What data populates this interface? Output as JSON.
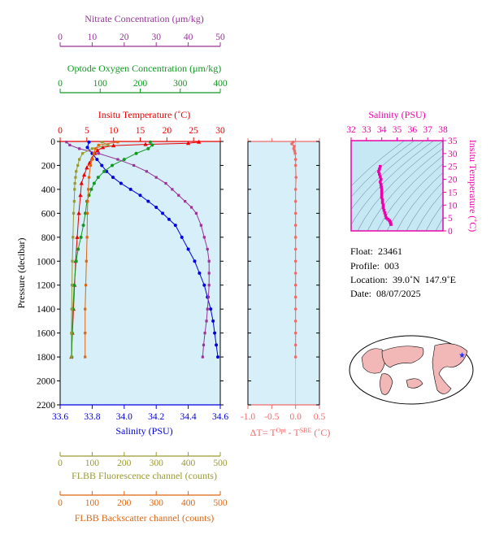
{
  "chart_data": {
    "type": "scatter",
    "main_profile": {
      "ylabel": "Pressure (decibar)",
      "ylim": [
        0,
        2200
      ],
      "yticks": [
        0,
        200,
        400,
        600,
        800,
        1000,
        1200,
        1400,
        1600,
        1800,
        2000,
        2200
      ],
      "axes": {
        "nitrate": {
          "label": "Nitrate Concentration (μm/kg)",
          "ticks": [
            0,
            10,
            20,
            30,
            40,
            50
          ],
          "lim": [
            0,
            50
          ],
          "color": "#993399"
        },
        "oxygen": {
          "label": "Optode Oxygen Concentration (μm/kg)",
          "ticks": [
            0,
            100,
            200,
            300,
            400
          ],
          "lim": [
            0,
            400
          ],
          "color": "#119922"
        },
        "temperature": {
          "label": "Insitu Temperature (˚C)",
          "ticks": [
            0,
            5,
            10,
            15,
            20,
            25,
            30
          ],
          "lim": [
            0,
            30
          ],
          "color": "#ee0000"
        },
        "salinity": {
          "label": "Salinity (PSU)",
          "ticks": [
            "33.6",
            "33.8",
            "34.0",
            "34.2",
            "34.4",
            "34.6"
          ],
          "lim": [
            33.6,
            34.6
          ],
          "color": "#0000dd"
        },
        "fluorescence": {
          "label": "FLBB Fluorescence channel (counts)",
          "ticks": [
            0,
            100,
            200,
            300,
            400,
            500
          ],
          "lim": [
            0,
            500
          ],
          "color": "#999933"
        },
        "backscatter": {
          "label": "FLBB Backscatter channel (counts)",
          "ticks": [
            0,
            100,
            200,
            300,
            400,
            500
          ],
          "lim": [
            0,
            500
          ],
          "color": "#dd6611"
        }
      },
      "series": [
        {
          "axis": "temperature",
          "points": [
            [
              26,
              5
            ],
            [
              24,
              15
            ],
            [
              16,
              25
            ],
            [
              10,
              35
            ],
            [
              8,
              50
            ],
            [
              7,
              75
            ],
            [
              6.5,
              100
            ],
            [
              6,
              140
            ],
            [
              5.5,
              180
            ],
            [
              5,
              220
            ],
            [
              4.5,
              280
            ],
            [
              4,
              350
            ],
            [
              3.8,
              450
            ],
            [
              3.5,
              600
            ],
            [
              3.2,
              800
            ],
            [
              2.9,
              1000
            ],
            [
              2.7,
              1200
            ],
            [
              2.5,
              1400
            ],
            [
              2.3,
              1600
            ],
            [
              2.1,
              1800
            ]
          ]
        },
        {
          "axis": "salinity",
          "points": [
            [
              33.78,
              5
            ],
            [
              33.77,
              50
            ],
            [
              33.8,
              100
            ],
            [
              33.83,
              150
            ],
            [
              33.86,
              200
            ],
            [
              33.89,
              250
            ],
            [
              33.93,
              300
            ],
            [
              33.98,
              350
            ],
            [
              34.04,
              400
            ],
            [
              34.1,
              450
            ],
            [
              34.15,
              500
            ],
            [
              34.2,
              550
            ],
            [
              34.24,
              600
            ],
            [
              34.28,
              650
            ],
            [
              34.32,
              700
            ],
            [
              34.36,
              800
            ],
            [
              34.4,
              900
            ],
            [
              34.44,
              1000
            ],
            [
              34.47,
              1100
            ],
            [
              34.5,
              1200
            ],
            [
              34.52,
              1300
            ],
            [
              34.54,
              1400
            ],
            [
              34.555,
              1500
            ],
            [
              34.565,
              1600
            ],
            [
              34.575,
              1700
            ],
            [
              34.585,
              1800
            ]
          ]
        },
        {
          "axis": "oxygen",
          "points": [
            [
              225,
              5
            ],
            [
              230,
              30
            ],
            [
              220,
              60
            ],
            [
              190,
              100
            ],
            [
              160,
              150
            ],
            [
              130,
              200
            ],
            [
              110,
              250
            ],
            [
              95,
              300
            ],
            [
              85,
              350
            ],
            [
              78,
              400
            ],
            [
              72,
              450
            ],
            [
              67,
              500
            ],
            [
              63,
              600
            ],
            [
              58,
              700
            ],
            [
              52,
              800
            ],
            [
              45,
              900
            ],
            [
              40,
              1000
            ],
            [
              35,
              1200
            ],
            [
              32,
              1400
            ],
            [
              30,
              1600
            ],
            [
              29,
              1800
            ]
          ]
        },
        {
          "axis": "nitrate",
          "points": [
            [
              2,
              5
            ],
            [
              3,
              30
            ],
            [
              6,
              60
            ],
            [
              12,
              100
            ],
            [
              18,
              150
            ],
            [
              23,
              200
            ],
            [
              27,
              250
            ],
            [
              30,
              300
            ],
            [
              33,
              350
            ],
            [
              35,
              400
            ],
            [
              37,
              450
            ],
            [
              39,
              500
            ],
            [
              41,
              550
            ],
            [
              42.5,
              600
            ],
            [
              44,
              700
            ],
            [
              45,
              800
            ],
            [
              46,
              900
            ],
            [
              46.5,
              1000
            ],
            [
              46.5,
              1100
            ],
            [
              46.5,
              1200
            ],
            [
              46.3,
              1300
            ],
            [
              46,
              1400
            ],
            [
              45.7,
              1500
            ],
            [
              45.2,
              1600
            ],
            [
              44.8,
              1700
            ],
            [
              44.5,
              1800
            ]
          ]
        },
        {
          "axis": "fluorescence",
          "points": [
            [
              130,
              5
            ],
            [
              150,
              30
            ],
            [
              100,
              60
            ],
            [
              70,
              100
            ],
            [
              60,
              150
            ],
            [
              55,
              200
            ],
            [
              50,
              250
            ],
            [
              48,
              300
            ],
            [
              46,
              350
            ],
            [
              45,
              400
            ],
            [
              44,
              500
            ],
            [
              42,
              600
            ],
            [
              40,
              800
            ],
            [
              38,
              1000
            ],
            [
              37,
              1200
            ],
            [
              36,
              1400
            ],
            [
              35,
              1600
            ],
            [
              35,
              1800
            ]
          ]
        },
        {
          "axis": "backscatter",
          "points": [
            [
              180,
              5
            ],
            [
              120,
              30
            ],
            [
              110,
              60
            ],
            [
              105,
              100
            ],
            [
              100,
              150
            ],
            [
              95,
              200
            ],
            [
              90,
              300
            ],
            [
              88,
              400
            ],
            [
              86,
              500
            ],
            [
              85,
              600
            ],
            [
              84,
              800
            ],
            [
              82,
              1000
            ],
            [
              80,
              1200
            ],
            [
              78,
              1400
            ],
            [
              78,
              1600
            ],
            [
              78,
              1800
            ]
          ]
        }
      ]
    },
    "delta_t": {
      "xlabel": "ΔT= Tᴼᵖᵗ - Tˢᴮᴱ (˚C)",
      "xlabel_main": "ΔT= T",
      "xlabel_sup1": "Opt",
      "xlabel_mid": " - T",
      "xlabel_sup2": "SBE",
      "xlabel_end": " (˚C)",
      "ticks": [
        "-1.0",
        "-0.5",
        "0.0",
        "0.5"
      ],
      "xlim": [
        -1.0,
        0.5
      ],
      "points": [
        [
          -0.05,
          5
        ],
        [
          -0.08,
          20
        ],
        [
          -0.03,
          40
        ],
        [
          -0.04,
          60
        ],
        [
          -0.02,
          80
        ],
        [
          -0.01,
          100
        ],
        [
          0.0,
          150
        ],
        [
          0.0,
          200
        ],
        [
          0.01,
          300
        ],
        [
          0.0,
          400
        ],
        [
          0.0,
          500
        ],
        [
          0.0,
          600
        ],
        [
          0.0,
          700
        ],
        [
          0.0,
          800
        ],
        [
          0.0,
          900
        ],
        [
          0.0,
          1000
        ],
        [
          0.0,
          1100
        ],
        [
          0.0,
          1200
        ],
        [
          0.0,
          1300
        ],
        [
          0.0,
          1400
        ],
        [
          0.0,
          1500
        ],
        [
          0.0,
          1600
        ],
        [
          0.0,
          1700
        ],
        [
          0.0,
          1800
        ]
      ]
    },
    "ts_diagram": {
      "xlabel": "Salinity (PSU)",
      "ylabel": "Insitu Temperature (˚C)",
      "xticks": [
        32,
        33,
        34,
        35,
        36,
        37,
        38
      ],
      "yticks": [
        0,
        5,
        10,
        15,
        20,
        25,
        30,
        35
      ],
      "xlim": [
        32,
        38
      ],
      "ylim": [
        0,
        35
      ],
      "points": [
        [
          33.9,
          25
        ],
        [
          33.85,
          24
        ],
        [
          33.8,
          23
        ],
        [
          33.85,
          22
        ],
        [
          33.9,
          21
        ],
        [
          33.95,
          20
        ],
        [
          33.9,
          19
        ],
        [
          33.95,
          18
        ],
        [
          33.97,
          17
        ],
        [
          34.0,
          16
        ],
        [
          34.0,
          15
        ],
        [
          34.0,
          14
        ],
        [
          34.0,
          13
        ],
        [
          34.05,
          12
        ],
        [
          34.05,
          11
        ],
        [
          34.1,
          10
        ],
        [
          34.1,
          9
        ],
        [
          34.15,
          8
        ],
        [
          34.2,
          7
        ],
        [
          34.25,
          6
        ],
        [
          34.3,
          5
        ],
        [
          34.4,
          4.5
        ],
        [
          34.5,
          4
        ],
        [
          34.55,
          3.5
        ],
        [
          34.58,
          3
        ],
        [
          34.6,
          2.5
        ]
      ]
    }
  },
  "info": {
    "float_label": "Float:",
    "float_value": "23461",
    "profile_label": "Profile:",
    "profile_value": "003",
    "location_label": "Location:",
    "location_value": "39.0˚N  147.9˚E",
    "date_label": "Date:",
    "date_value": "08/07/2025"
  },
  "colors": {
    "plot_bg": "#d6eff8",
    "ts_bg": "#c6e8f4",
    "delta_color": "#f06a6a",
    "ts_color": "#ee00aa",
    "map_land": "#f2b8b8",
    "map_ocean": "#ffffff",
    "float_marker": "#2233ff"
  }
}
